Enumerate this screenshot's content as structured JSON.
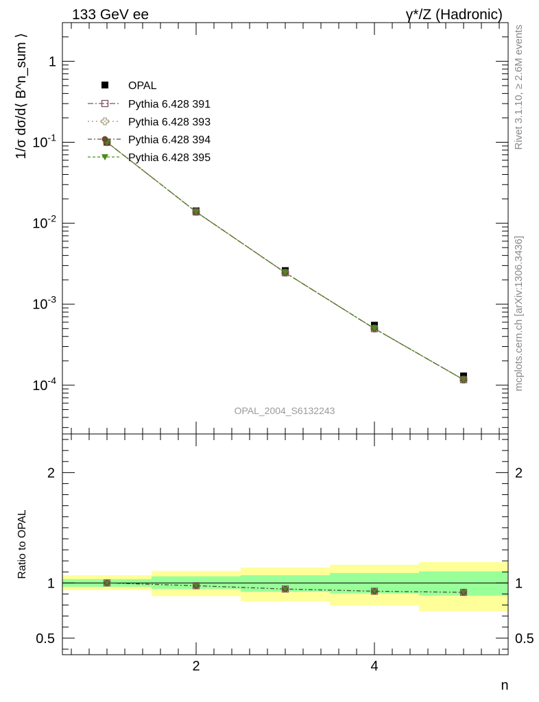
{
  "header": {
    "left_title": "133 GeV ee",
    "right_title": "γ*/Z (Hadronic)"
  },
  "side_labels": {
    "rivet": "Rivet 3.1.10, ≥ 2.6M events",
    "source": "mcplots.cern.ch [arXiv:1306.3436]"
  },
  "analysis_label": "OPAL_2004_S6132243",
  "chart_data": [
    {
      "type": "scatter",
      "panel": "main",
      "ylabel": "1/σ dσ/d⟨ B^n_sum ⟩",
      "yscale": "log",
      "xlim": [
        0.5,
        5.5
      ],
      "ylim": [
        2.5e-05,
        3.0
      ],
      "y_tick_labels": [
        "10^-4",
        "10^-3",
        "10^-2",
        "10^-1",
        "1"
      ],
      "legend_position": "top-left",
      "colors": {
        "OPAL": "#000000",
        "p391": "#7a4f5f",
        "p393": "#9a8f6a",
        "p394": "#6b4a2f",
        "p395": "#4a8a1f"
      },
      "x": [
        1,
        2,
        3,
        4,
        5
      ],
      "series": [
        {
          "name": "OPAL",
          "values": [
            0.1,
            0.0142,
            0.0026,
            0.00055,
            0.00013
          ]
        },
        {
          "name": "Pythia 6.428 391",
          "values": [
            0.1,
            0.0138,
            0.00245,
            0.0005,
            0.000117
          ]
        },
        {
          "name": "Pythia 6.428 393",
          "values": [
            0.1,
            0.0138,
            0.00245,
            0.0005,
            0.000117
          ]
        },
        {
          "name": "Pythia 6.428 394",
          "values": [
            0.1,
            0.0138,
            0.00245,
            0.0005,
            0.000117
          ]
        },
        {
          "name": "Pythia 6.428 395",
          "values": [
            0.1,
            0.0138,
            0.00245,
            0.0005,
            0.000117
          ]
        }
      ]
    },
    {
      "type": "line",
      "panel": "ratio",
      "xlabel": "n",
      "ylabel": "Ratio to OPAL",
      "xlim": [
        0.5,
        5.5
      ],
      "ylim": [
        0.35,
        2.35
      ],
      "x_tick_labels": [
        "2",
        "4"
      ],
      "y_tick_labels": [
        "0.5",
        "1",
        "2"
      ],
      "x": [
        1,
        2,
        3,
        4,
        5
      ],
      "bins": [
        [
          0.5,
          1.5
        ],
        [
          1.5,
          2.5
        ],
        [
          2.5,
          3.5
        ],
        [
          3.5,
          4.5
        ],
        [
          4.5,
          5.5
        ]
      ],
      "band_inner": {
        "color": "#99ff99",
        "low": [
          0.965,
          0.945,
          0.92,
          0.905,
          0.885
        ],
        "high": [
          1.035,
          1.06,
          1.07,
          1.09,
          1.105
        ]
      },
      "band_outer": {
        "color": "#ffff99",
        "low": [
          0.935,
          0.88,
          0.835,
          0.795,
          0.745
        ],
        "high": [
          1.07,
          1.11,
          1.14,
          1.165,
          1.19
        ]
      },
      "series": [
        {
          "name": "Pythia 6.428 391",
          "values": [
            1.0,
            0.975,
            0.945,
            0.925,
            0.915
          ]
        }
      ]
    }
  ]
}
